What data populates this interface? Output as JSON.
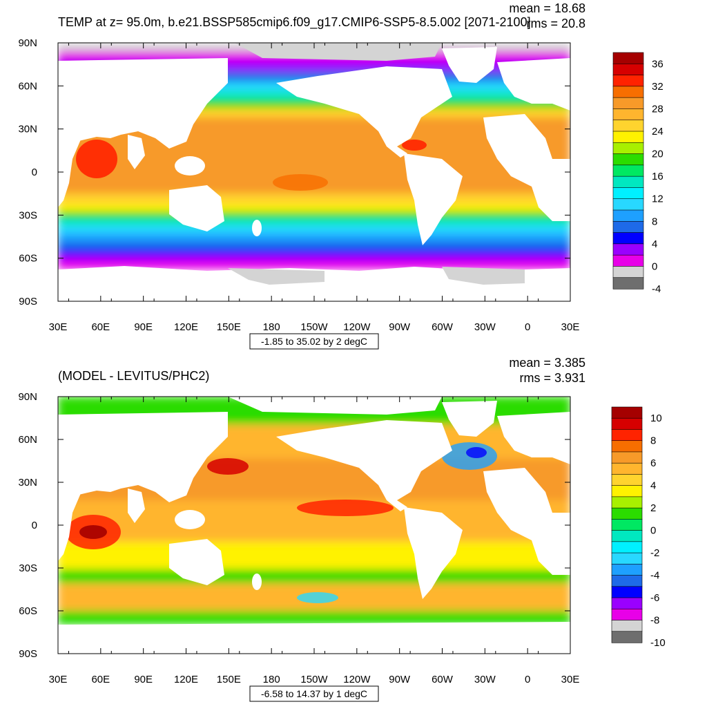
{
  "chart_data": [
    {
      "type": "heatmap",
      "title": "TEMP at z=  95.0m, b.e21.BSSP585cmip6.f09_g17.CMIP6-SSP5-8.5.002 [2071-2100]",
      "stats": {
        "mean": "mean = 18.68",
        "rms": "rms = 20.8"
      },
      "x_ticks": [
        "30E",
        "60E",
        "90E",
        "120E",
        "150E",
        "180",
        "150W",
        "120W",
        "90W",
        "60W",
        "30W",
        "0",
        "30E"
      ],
      "y_ticks": [
        "90N",
        "60N",
        "30N",
        "0",
        "30S",
        "60S",
        "90S"
      ],
      "xlim_deg_lon": [
        30,
        390
      ],
      "ylim_deg_lat": [
        -90,
        90
      ],
      "range_label": "-1.85 to 35.02 by 2 degC",
      "colorbar": {
        "labels": [
          "36",
          "32",
          "28",
          "24",
          "20",
          "16",
          "12",
          "8",
          "4",
          "0",
          "-4"
        ],
        "colors": [
          "#a50000",
          "#d60000",
          "#ff2300",
          "#f76e00",
          "#f79a29",
          "#ffb52e",
          "#ffd42e",
          "#fff200",
          "#a8f000",
          "#2bdc00",
          "#00e862",
          "#00e8c0",
          "#00f0ff",
          "#28d8ff",
          "#1ea0ff",
          "#1e6ae8",
          "#0000ff",
          "#9a00ff",
          "#e800e8",
          "#d4d4d4",
          "#6e6e6e"
        ]
      },
      "grid": "none"
    },
    {
      "type": "heatmap",
      "title": "(MODEL - LEVITUS/PHC2)",
      "stats": {
        "mean": "mean = 3.385",
        "rms": "rms = 3.931"
      },
      "x_ticks": [
        "30E",
        "60E",
        "90E",
        "120E",
        "150E",
        "180",
        "150W",
        "120W",
        "90W",
        "60W",
        "30W",
        "0",
        "30E"
      ],
      "y_ticks": [
        "90N",
        "60N",
        "30N",
        "0",
        "30S",
        "60S",
        "90S"
      ],
      "xlim_deg_lon": [
        30,
        390
      ],
      "ylim_deg_lat": [
        -90,
        90
      ],
      "range_label": "-6.58 to 14.37 by 1 degC",
      "colorbar": {
        "labels": [
          "10",
          "8",
          "6",
          "4",
          "2",
          "0",
          "-2",
          "-4",
          "-6",
          "-8",
          "-10"
        ],
        "colors": [
          "#a50000",
          "#d60000",
          "#ff2300",
          "#f76e00",
          "#f79a29",
          "#ffb52e",
          "#ffd42e",
          "#fff200",
          "#a8f000",
          "#2bdc00",
          "#00e862",
          "#00e8c0",
          "#00f0ff",
          "#28d8ff",
          "#1ea0ff",
          "#1e6ae8",
          "#0000ff",
          "#9a00ff",
          "#e800e8",
          "#d4d4d4",
          "#6e6e6e"
        ]
      },
      "grid": "none"
    }
  ]
}
